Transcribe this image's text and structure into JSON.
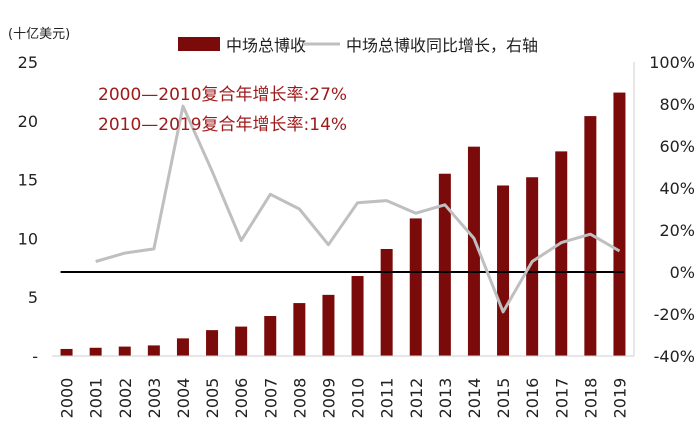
{
  "chart_data": {
    "type": "bar+line",
    "unit_label": "(十亿美元)",
    "categories": [
      "2000",
      "2001",
      "2002",
      "2003",
      "2004",
      "2005",
      "2006",
      "2007",
      "2008",
      "2009",
      "2010",
      "2011",
      "2012",
      "2013",
      "2014",
      "2015",
      "2016",
      "2017",
      "2018",
      "2019"
    ],
    "series": [
      {
        "name": "中场总博收",
        "type": "bar",
        "axis": "left",
        "color": "#7b0a0a",
        "values": [
          0.6,
          0.7,
          0.8,
          0.9,
          1.5,
          2.2,
          2.5,
          3.4,
          4.5,
          5.2,
          6.8,
          9.1,
          11.7,
          15.5,
          17.8,
          14.5,
          15.2,
          17.4,
          20.4,
          22.4
        ]
      },
      {
        "name": "中场总博收同比增长，右轴",
        "type": "line",
        "axis": "right",
        "color": "#bfbfbf",
        "values": [
          null,
          5,
          9,
          11,
          79,
          48,
          15,
          37,
          30,
          13,
          33,
          34,
          28,
          32,
          16,
          -19,
          5,
          14,
          18,
          10
        ]
      }
    ],
    "y_left": {
      "min": 0,
      "max": 25,
      "ticks": [
        "-",
        "5",
        "10",
        "15",
        "20",
        "25"
      ]
    },
    "y_right": {
      "min": -40,
      "max": 100,
      "ticks": [
        "-40%",
        "-20%",
        "0%",
        "20%",
        "40%",
        "60%",
        "80%",
        "100%"
      ]
    },
    "annotations": [
      "2000—2010复合年增长率:27%",
      "2010—2019复合年增长率:14%"
    ],
    "legend_position": "top"
  }
}
